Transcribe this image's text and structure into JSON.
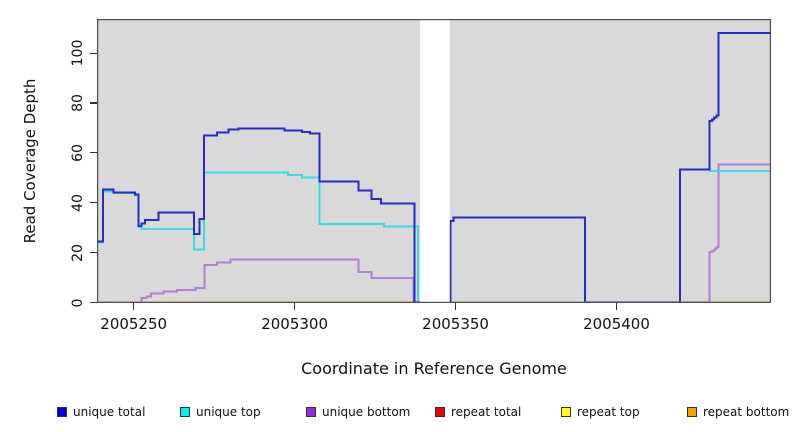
{
  "x_axis": {
    "title": "Coordinate in Reference Genome",
    "ticks": [
      2005250,
      2005300,
      2005350,
      2005400
    ]
  },
  "y_axis": {
    "title": "Read Coverage Depth",
    "ticks": [
      0,
      20,
      40,
      60,
      80,
      100
    ]
  },
  "legend": {
    "items": [
      {
        "label": "unique total",
        "color": "#0000e6"
      },
      {
        "label": "unique top",
        "color": "#00f2f2"
      },
      {
        "label": "unique bottom",
        "color": "#9429d6"
      },
      {
        "label": "repeat total",
        "color": "#f00000"
      },
      {
        "label": "repeat top",
        "color": "#ffff00"
      },
      {
        "label": "repeat bottom",
        "color": "#ff9e00"
      }
    ]
  },
  "chart_data": {
    "type": "line",
    "subtype": "step-after",
    "title": "",
    "xlabel": "Coordinate in Reference Genome",
    "ylabel": "Read Coverage Depth",
    "xlim": [
      2005238.6,
      2005448.0
    ],
    "ylim": [
      0,
      113.7
    ],
    "plot_background": "#d9d9d9",
    "border_color": "#4d4d4d",
    "grid": false,
    "legend_position": "bottom",
    "gap_region": {
      "from": 2005339.0,
      "to": 2005348.2,
      "color": "#ffffff"
    },
    "series": [
      {
        "name": "repeat top",
        "color": "#ffff00",
        "points": [
          [
            2005238.6,
            0
          ],
          [
            2005448.0,
            0
          ]
        ]
      },
      {
        "name": "repeat total",
        "color": "#f00000",
        "points": [
          [
            2005238.6,
            0
          ],
          [
            2005448.0,
            0
          ]
        ]
      },
      {
        "name": "repeat bottom",
        "color": "#ff9e00",
        "points": [
          [
            2005238.6,
            0
          ],
          [
            2005448.0,
            0
          ]
        ]
      },
      {
        "name": "unique bottom",
        "color": "#b47cd6",
        "points": [
          [
            2005238.6,
            0
          ],
          [
            2005252.5,
            1.8
          ],
          [
            2005254.0,
            2.4
          ],
          [
            2005255.3,
            3.7
          ],
          [
            2005259.2,
            4.5
          ],
          [
            2005263.5,
            5.1
          ],
          [
            2005269.2,
            5.9
          ],
          [
            2005272.0,
            15.0
          ],
          [
            2005275.9,
            16.0
          ],
          [
            2005280.1,
            17.2
          ],
          [
            2005319.8,
            12.3
          ],
          [
            2005323.9,
            9.9
          ],
          [
            2005336.9,
            0
          ],
          [
            2005428.9,
            20.3
          ],
          [
            2005429.8,
            20.9
          ],
          [
            2005430.6,
            21.6
          ],
          [
            2005431.2,
            22.2
          ],
          [
            2005431.7,
            55.4
          ],
          [
            2005448.0,
            55.4
          ]
        ]
      },
      {
        "name": "unique top",
        "color": "#35dce6",
        "points": [
          [
            2005238.6,
            24.0
          ],
          [
            2005240.4,
            44.6
          ],
          [
            2005243.7,
            44.0
          ],
          [
            2005250.4,
            43.0
          ],
          [
            2005251.5,
            30.2
          ],
          [
            2005252.5,
            29.5
          ],
          [
            2005268.8,
            21.2
          ],
          [
            2005271.9,
            52.2
          ],
          [
            2005297.9,
            51.2
          ],
          [
            2005302.3,
            50.1
          ],
          [
            2005307.7,
            31.4
          ],
          [
            2005327.7,
            30.4
          ],
          [
            2005338.4,
            0
          ],
          [
            2005419.8,
            53.3
          ],
          [
            2005429.0,
            52.8
          ],
          [
            2005448.0,
            52.8
          ]
        ]
      },
      {
        "name": "unique total",
        "color": "#2929cc",
        "points": [
          [
            2005238.6,
            24.4
          ],
          [
            2005240.4,
            45.3
          ],
          [
            2005243.7,
            44.2
          ],
          [
            2005250.4,
            43.3
          ],
          [
            2005251.5,
            30.6
          ],
          [
            2005252.5,
            31.6
          ],
          [
            2005253.5,
            33.1
          ],
          [
            2005257.7,
            36.0
          ],
          [
            2005268.8,
            27.4
          ],
          [
            2005270.5,
            33.4
          ],
          [
            2005271.9,
            67.0
          ],
          [
            2005275.9,
            68.2
          ],
          [
            2005279.4,
            69.4
          ],
          [
            2005282.5,
            69.8
          ],
          [
            2005296.9,
            69.0
          ],
          [
            2005302.3,
            68.4
          ],
          [
            2005304.8,
            67.8
          ],
          [
            2005307.7,
            48.6
          ],
          [
            2005319.8,
            44.9
          ],
          [
            2005323.9,
            41.6
          ],
          [
            2005326.8,
            39.8
          ],
          [
            2005337.3,
            0
          ],
          [
            2005348.4,
            32.6
          ],
          [
            2005349.4,
            34.1
          ],
          [
            2005390.2,
            0
          ],
          [
            2005419.8,
            53.3
          ],
          [
            2005428.9,
            72.7
          ],
          [
            2005429.6,
            73.4
          ],
          [
            2005430.3,
            74.2
          ],
          [
            2005431.0,
            74.9
          ],
          [
            2005431.7,
            108.1
          ],
          [
            2005448.0,
            108.1
          ]
        ]
      }
    ],
    "baseline_segments": [
      {
        "from": 2005238.6,
        "to": 2005252.4,
        "color": "#e378a4"
      },
      {
        "from": 2005348.9,
        "to": 2005390.2,
        "color": "#7cc87c"
      },
      {
        "from": 2005419.8,
        "to": 2005428.9,
        "color": "#cf4a73"
      }
    ]
  }
}
